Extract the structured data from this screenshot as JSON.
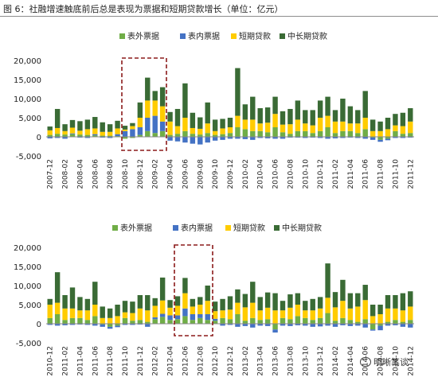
{
  "figure_title": "图 6：社融增速触底前后总是表现为票据和短期贷款增长（单位：亿元）",
  "watermark_text": "明晰笔谈",
  "chart_data": [
    {
      "type": "bar",
      "stacked": true,
      "ylim": [
        -5000,
        20000
      ],
      "yticks": [
        "-5,000",
        "0",
        "5,000",
        "10,000",
        "15,000",
        "20,000"
      ],
      "grid": false,
      "legend_position": "top",
      "x_tick_labels": [
        "2007-12",
        "2008-02",
        "2008-04",
        "2008-06",
        "2008-08",
        "2008-10",
        "2008-12",
        "2009-02",
        "2009-04",
        "2009-06",
        "2009-08",
        "2009-10",
        "2009-12",
        "2010-02",
        "2010-04",
        "2010-06",
        "2010-08",
        "2010-10",
        "2010-12",
        "2011-02",
        "2011-04",
        "2011-06",
        "2011-08",
        "2011-10",
        "2011-12"
      ],
      "categories": [
        "2007-12",
        "2008-01",
        "2008-02",
        "2008-03",
        "2008-04",
        "2008-05",
        "2008-06",
        "2008-07",
        "2008-08",
        "2008-09",
        "2008-10",
        "2008-11",
        "2008-12",
        "2009-01",
        "2009-02",
        "2009-03",
        "2009-04",
        "2009-05",
        "2009-06",
        "2009-07",
        "2009-08",
        "2009-09",
        "2009-10",
        "2009-11",
        "2009-12",
        "2010-01",
        "2010-02",
        "2010-03",
        "2010-04",
        "2010-05",
        "2010-06",
        "2010-07",
        "2010-08",
        "2010-09",
        "2010-10",
        "2010-11",
        "2010-12",
        "2011-01",
        "2011-02",
        "2011-03",
        "2011-04",
        "2011-05",
        "2011-06",
        "2011-07",
        "2011-08",
        "2011-09",
        "2011-10",
        "2011-11",
        "2011-12"
      ],
      "series": [
        {
          "name": "表外票据",
          "color": "#70ad47",
          "values": [
            500,
            800,
            600,
            700,
            600,
            500,
            400,
            300,
            300,
            200,
            -500,
            -300,
            500,
            1500,
            1000,
            1500,
            500,
            800,
            1500,
            800,
            600,
            1000,
            500,
            700,
            1000,
            2500,
            2000,
            1500,
            1500,
            1200,
            2500,
            1200,
            800,
            1500,
            1500,
            1000,
            1500,
            2500,
            1000,
            1500,
            1500,
            1000,
            2000,
            -200,
            -800,
            -500,
            1500,
            800,
            1000
          ]
        },
        {
          "name": "表内票据",
          "color": "#4472c4",
          "values": [
            -400,
            -300,
            -500,
            200,
            -200,
            -300,
            300,
            -200,
            -300,
            500,
            1500,
            2000,
            2000,
            3500,
            4500,
            2500,
            -1000,
            -1200,
            -1500,
            -1800,
            -2000,
            -1500,
            -1000,
            -800,
            -500,
            -500,
            -600,
            -800,
            -300,
            -400,
            -500,
            -500,
            -200,
            -200,
            -300,
            -200,
            -300,
            -500,
            -400,
            -300,
            -200,
            -300,
            -500,
            -600,
            -500,
            -400,
            -300,
            -300,
            -200
          ]
        },
        {
          "name": "短期贷款",
          "color": "#ffcc00",
          "values": [
            1200,
            1500,
            900,
            1500,
            1000,
            1500,
            1500,
            1000,
            1000,
            1500,
            400,
            800,
            2500,
            4500,
            4000,
            4000,
            3500,
            2000,
            3500,
            1500,
            1500,
            2500,
            1000,
            1500,
            1500,
            3000,
            2500,
            3000,
            2000,
            2500,
            3500,
            2000,
            2500,
            3000,
            2000,
            2000,
            3500,
            3000,
            3000,
            2500,
            2000,
            2500,
            3000,
            1500,
            1500,
            2000,
            1500,
            2000,
            3000
          ]
        },
        {
          "name": "中长期贷款",
          "color": "#3a6b35",
          "values": [
            1000,
            5000,
            1800,
            2000,
            2500,
            2500,
            3000,
            2500,
            2000,
            2000,
            1000,
            800,
            4000,
            6000,
            2500,
            5000,
            2500,
            4500,
            9000,
            4000,
            3000,
            5500,
            3000,
            2500,
            2500,
            12500,
            4000,
            6000,
            4000,
            4000,
            4500,
            3500,
            4000,
            5000,
            3500,
            4000,
            4500,
            5000,
            3000,
            6000,
            4500,
            3500,
            7000,
            3000,
            2500,
            3000,
            3000,
            3500,
            3500
          ]
        }
      ]
    },
    {
      "type": "bar",
      "stacked": true,
      "ylim": [
        -5000,
        20000
      ],
      "yticks": [
        "-5,000",
        "0",
        "5,000",
        "10,000",
        "15,000",
        "20,000"
      ],
      "grid": false,
      "legend_position": "top",
      "x_tick_labels": [
        "2010-12",
        "2011-02",
        "2011-04",
        "2011-06",
        "2011-08",
        "2011-10",
        "2011-12",
        "2012-02",
        "2012-04",
        "2012-06",
        "2012-08",
        "2012-10",
        "2012-12",
        "2013-02",
        "2013-04",
        "2013-06",
        "2013-08",
        "2013-10",
        "2013-12",
        "2014-02",
        "2014-04",
        "2014-06",
        "2014-08",
        "2014-10",
        "2014-12"
      ],
      "categories": [
        "2010-12",
        "2011-01",
        "2011-02",
        "2011-03",
        "2011-04",
        "2011-05",
        "2011-06",
        "2011-07",
        "2011-08",
        "2011-09",
        "2011-10",
        "2011-11",
        "2011-12",
        "2012-01",
        "2012-02",
        "2012-03",
        "2012-04",
        "2012-05",
        "2012-06",
        "2012-07",
        "2012-08",
        "2012-09",
        "2012-10",
        "2012-11",
        "2012-12",
        "2013-01",
        "2013-02",
        "2013-03",
        "2013-04",
        "2013-05",
        "2013-06",
        "2013-07",
        "2013-08",
        "2013-09",
        "2013-10",
        "2013-11",
        "2013-12",
        "2014-01",
        "2014-02",
        "2014-03",
        "2014-04",
        "2014-05",
        "2014-06",
        "2014-07",
        "2014-08",
        "2014-09",
        "2014-10",
        "2014-11",
        "2014-12"
      ],
      "series": [
        {
          "name": "表外票据",
          "color": "#70ad47",
          "values": [
            1500,
            2500,
            1000,
            1500,
            1500,
            1000,
            2000,
            -200,
            -800,
            -500,
            1500,
            800,
            1000,
            500,
            1200,
            1800,
            1000,
            1200,
            2000,
            1000,
            1500,
            1000,
            800,
            1500,
            1200,
            2500,
            800,
            1500,
            1000,
            1200,
            -1500,
            1500,
            1200,
            2000,
            1500,
            1000,
            1500,
            2800,
            800,
            1500,
            1000,
            500,
            1200,
            -1500,
            -500,
            500,
            1000,
            500,
            1000
          ]
        },
        {
          "name": "表内票据",
          "color": "#4472c4",
          "values": [
            -300,
            -500,
            -400,
            -300,
            -200,
            -300,
            -500,
            -600,
            -500,
            -400,
            -300,
            -300,
            -200,
            -800,
            500,
            800,
            1200,
            1000,
            2000,
            1500,
            1000,
            1500,
            500,
            -500,
            -300,
            -800,
            -600,
            -1000,
            -500,
            -600,
            -800,
            -500,
            -600,
            -400,
            -500,
            -800,
            -700,
            -500,
            -800,
            -400,
            -600,
            -500,
            -1000,
            -300,
            -1200,
            -500,
            -400,
            -800,
            -1000
          ]
        },
        {
          "name": "短期贷款",
          "color": "#ffcc00",
          "values": [
            3500,
            3000,
            3000,
            2500,
            2000,
            2500,
            3000,
            1500,
            1500,
            2000,
            1500,
            2000,
            3000,
            3000,
            3000,
            3500,
            2000,
            2500,
            4000,
            2000,
            2500,
            3500,
            2000,
            2000,
            2500,
            3000,
            3500,
            4000,
            2500,
            3000,
            3500,
            2000,
            3000,
            3000,
            2000,
            2500,
            2500,
            4000,
            3500,
            4500,
            3000,
            4000,
            5000,
            2000,
            2500,
            3500,
            3000,
            3000,
            3500
          ]
        },
        {
          "name": "中长期贷款",
          "color": "#3a6b35",
          "values": [
            1500,
            8000,
            3500,
            5500,
            3500,
            3000,
            6000,
            3000,
            2500,
            3000,
            3000,
            3000,
            3500,
            4000,
            2000,
            6000,
            2000,
            2500,
            4000,
            2000,
            2000,
            4000,
            2500,
            3000,
            3500,
            3500,
            3500,
            5500,
            3500,
            4000,
            4500,
            2500,
            3500,
            3000,
            2500,
            3000,
            3000,
            9000,
            4000,
            5500,
            4000,
            3500,
            4000,
            3000,
            2500,
            3500,
            3500,
            4500,
            4000
          ]
        }
      ]
    }
  ]
}
